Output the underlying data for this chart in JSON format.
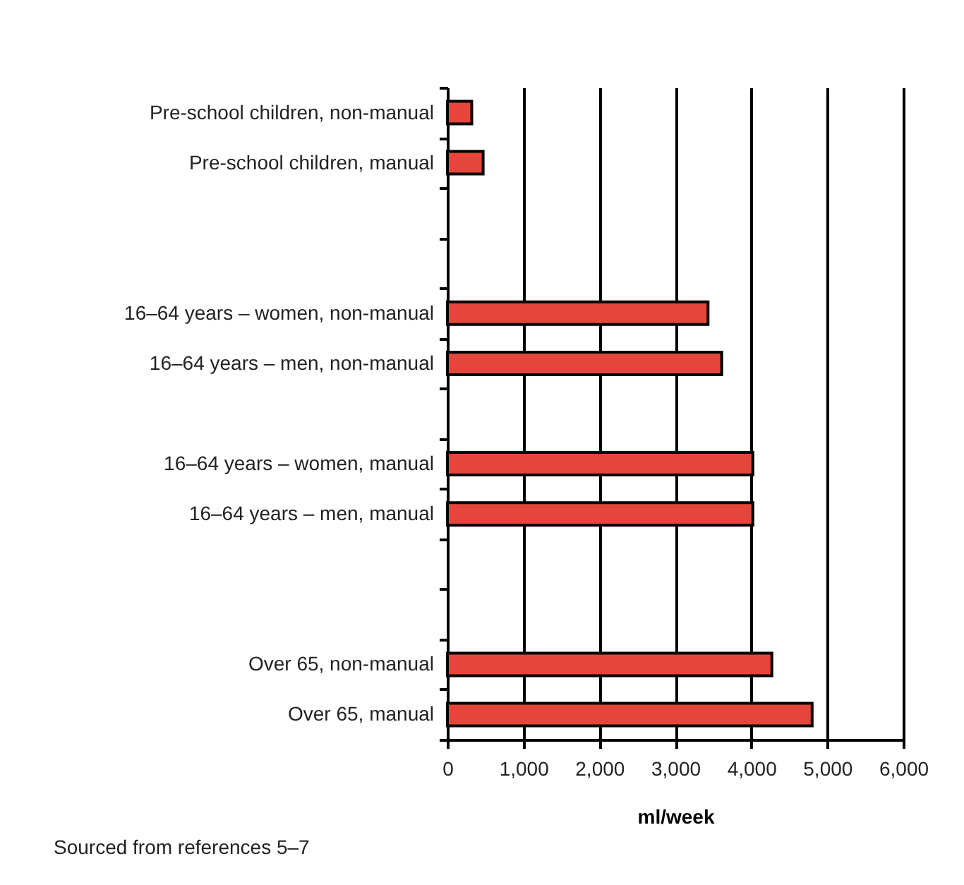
{
  "chart_data": {
    "type": "bar",
    "orientation": "horizontal",
    "categories": [
      "Pre-school children, non-manual",
      "Pre-school children, manual",
      null,
      null,
      "16–64 years – women, non-manual",
      "16–64 years – men, non-manual",
      null,
      "16–64 years – women, manual",
      "16–64 years – men, manual",
      null,
      null,
      "Over 65, non-manual",
      "Over 65, manual"
    ],
    "values": [
      320,
      470,
      null,
      null,
      3430,
      3610,
      null,
      4020,
      4020,
      null,
      null,
      4270,
      4800
    ],
    "color": "#e5463b",
    "xlim": [
      0,
      6000
    ],
    "xticks": [
      0,
      {
        "value": 1000,
        "label": "1,000"
      },
      {
        "value": 2000,
        "label": "2,000"
      },
      {
        "value": 3000,
        "label": "3,000"
      },
      {
        "value": 4000,
        "label": "4,000"
      },
      {
        "value": 5000,
        "label": "5,000"
      },
      {
        "value": 6000,
        "label": "6,000"
      }
    ],
    "xlabel": "ml/week",
    "grid": "x",
    "annotations": [
      "Sourced from references 5–7"
    ]
  }
}
